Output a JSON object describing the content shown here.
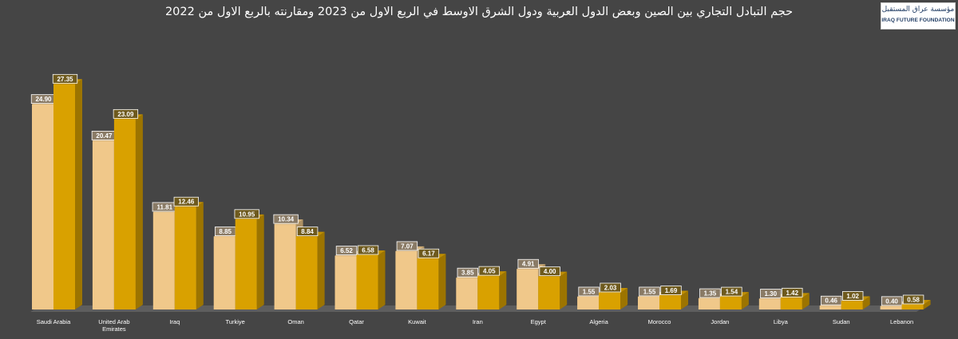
{
  "logo": {
    "text_ar": "مؤسسة عراق المستقبل",
    "text_en": "IRAQ FUTURE FOUNDATION"
  },
  "chart_data": {
    "type": "bar",
    "title": "حجم التبادل التجاري بين الصين وبعض الدول العربية ودول الشرق الاوسط في الربع الاول من 2023 ومقارنته بالربع الاول من 2022",
    "categories": [
      "Saudi Arabia",
      "United Arab Emirates",
      "Iraq",
      "Turkiye",
      "Oman",
      "Qatar",
      "Kuwait",
      "Iran",
      "Egypt",
      "Algeria",
      "Morocco",
      "Jordan",
      "Libya",
      "Sudan",
      "Lebanon"
    ],
    "series": [
      {
        "values": [
          24.9,
          20.47,
          11.81,
          8.85,
          10.34,
          6.52,
          7.07,
          3.85,
          4.91,
          1.55,
          1.55,
          1.35,
          1.3,
          0.46,
          0.4
        ],
        "color": "#f0c88a"
      },
      {
        "values": [
          27.35,
          23.09,
          12.46,
          10.95,
          8.84,
          6.58,
          6.17,
          4.05,
          4.0,
          2.03,
          1.69,
          1.54,
          1.42,
          1.02,
          0.58
        ],
        "color": "#d9a100"
      }
    ],
    "ylim": [
      0,
      30
    ],
    "grid": false,
    "legend": "none"
  }
}
